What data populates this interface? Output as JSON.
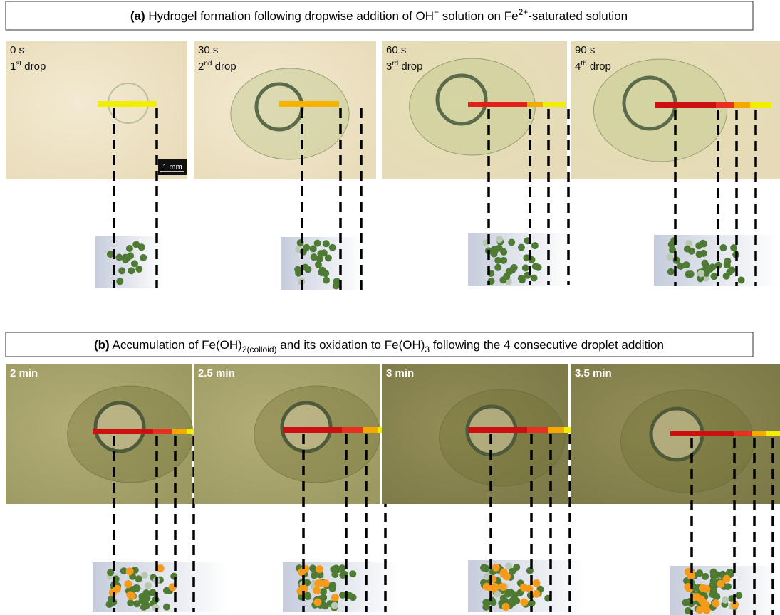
{
  "panels": [
    {
      "title": {
        "label": "(a)",
        "parts": [
          " Hydrogel formation following dropwise addition of OH",
          "−",
          " solution on Fe",
          "2+",
          "-saturated solution"
        ]
      },
      "frames": [
        {
          "time": "0 s",
          "drop": [
            "1",
            "st",
            " drop"
          ]
        },
        {
          "time": "30 s",
          "drop": [
            "2",
            "nd",
            " drop"
          ]
        },
        {
          "time": "60 s",
          "drop": [
            "3",
            "rd",
            " drop"
          ]
        },
        {
          "time": "90 s",
          "drop": [
            "4",
            "th",
            " drop"
          ]
        }
      ],
      "scale_bar": "1 mm"
    },
    {
      "title": {
        "label": "(b)",
        "parts": [
          " Accumulation of Fe(OH)",
          "2(colloid)",
          " and its oxidation to Fe(OH)",
          "3",
          " following the 4 consecutive droplet addition"
        ]
      },
      "frames": [
        {
          "time": "2 min"
        },
        {
          "time": "2.5 min"
        },
        {
          "time": "3 min"
        },
        {
          "time": "3.5 min"
        }
      ]
    }
  ]
}
